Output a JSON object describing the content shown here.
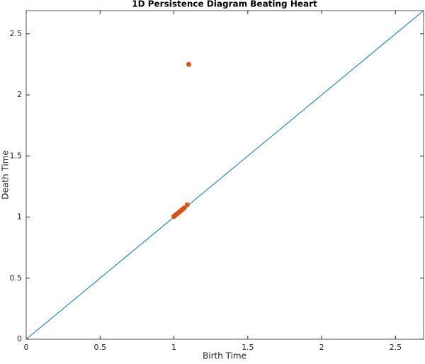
{
  "chart_data": {
    "type": "scatter",
    "title": "1D Persistence Diagram Beating Heart",
    "x_label": "Birth Time",
    "y_label": "Death Time",
    "series": [
      {
        "color": "#d95319",
        "x": [
          1.1,
          1.0,
          1.01,
          1.02,
          1.03,
          1.04,
          1.05,
          1.06,
          1.07,
          1.09
        ],
        "values": [
          2.25,
          1.005,
          1.015,
          1.025,
          1.035,
          1.045,
          1.055,
          1.065,
          1.075,
          1.1
        ]
      }
    ],
    "diagonal": {
      "color": "#0072bd",
      "x": [
        0,
        2.69
      ],
      "values": [
        0,
        2.69
      ]
    },
    "xlim": [
      0,
      2.69
    ],
    "ylim": [
      0,
      2.69
    ],
    "xticks": [
      0,
      0.5,
      1,
      1.5,
      2,
      2.5
    ],
    "yticks": [
      0,
      0.5,
      1,
      1.5,
      2,
      2.5
    ]
  }
}
